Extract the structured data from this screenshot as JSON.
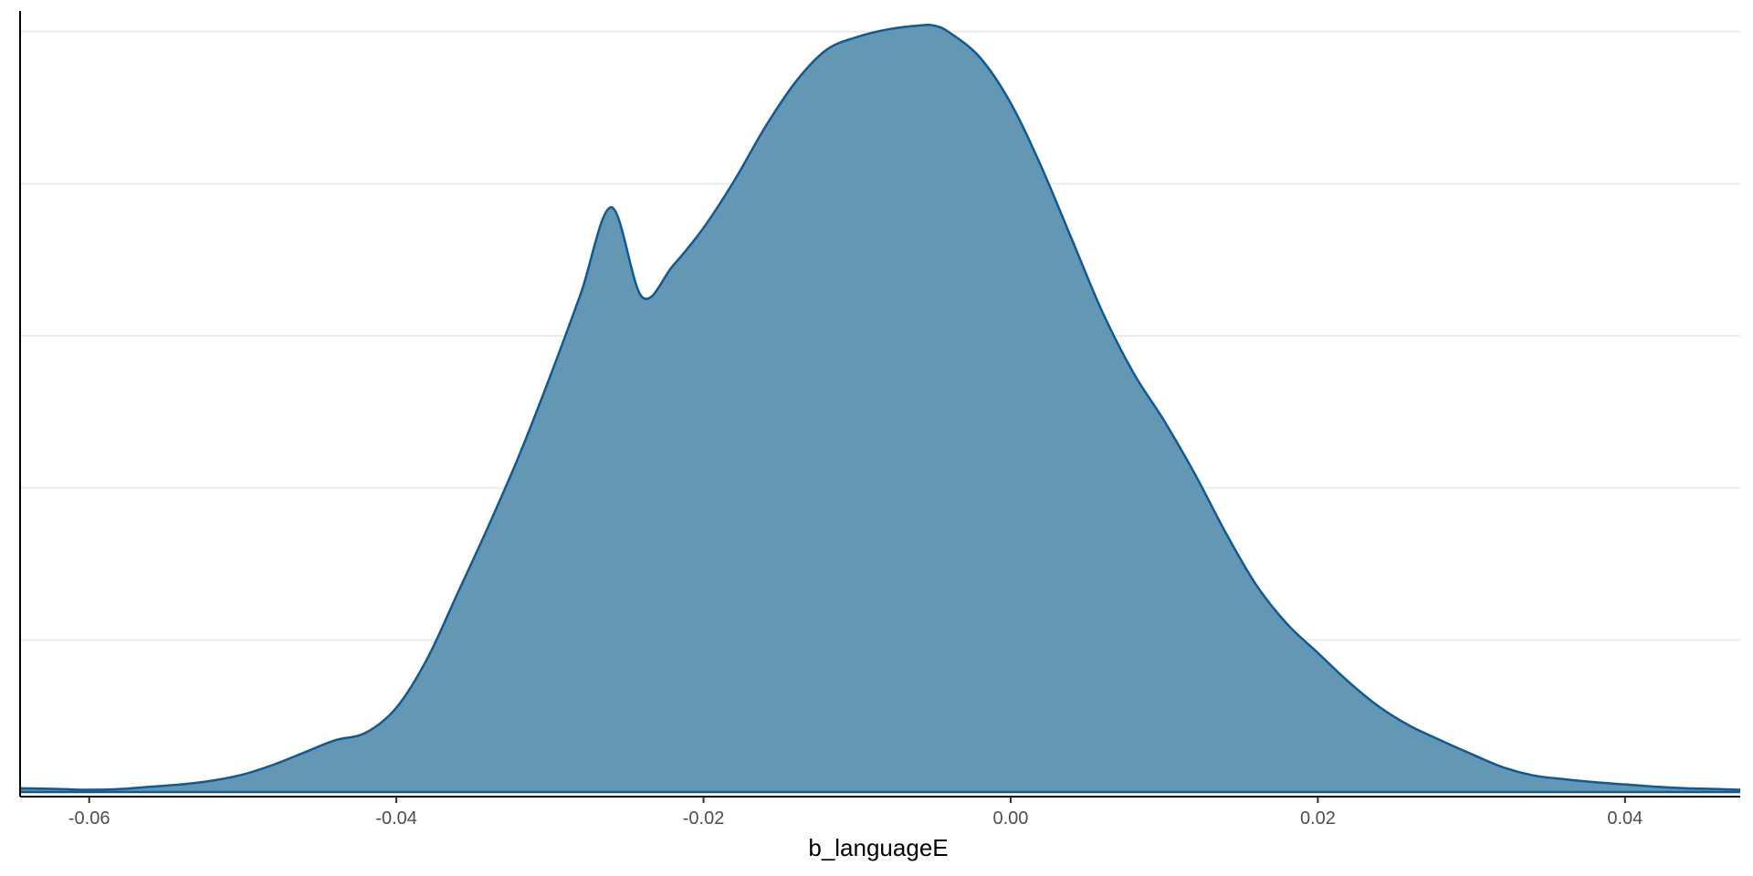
{
  "chart_data": {
    "type": "area",
    "title": "",
    "xlabel": "b_languageE",
    "ylabel": "",
    "xlim": [
      -0.0645,
      0.0475
    ],
    "ylim": [
      0,
      1.02
    ],
    "x_ticks": [
      -0.06,
      -0.04,
      -0.02,
      0.0,
      0.02,
      0.04
    ],
    "x_tick_labels": [
      "-0.06",
      "-0.04",
      "-0.02",
      "0.00",
      "0.02",
      "0.04"
    ],
    "y_gridlines": [
      0.2,
      0.4,
      0.6,
      0.8,
      1.0
    ],
    "grid": "horizontal-major",
    "legend": "none",
    "fill_color": "#6497b3",
    "line_color": "#0d5a96",
    "series": [
      {
        "x": [
          -0.0645,
          -0.062,
          -0.06,
          -0.058,
          -0.056,
          -0.054,
          -0.052,
          -0.05,
          -0.048,
          -0.046,
          -0.044,
          -0.042,
          -0.04,
          -0.038,
          -0.036,
          -0.034,
          -0.032,
          -0.03,
          -0.028,
          -0.026,
          -0.024,
          -0.022,
          -0.02,
          -0.018,
          -0.016,
          -0.014,
          -0.012,
          -0.01,
          -0.008,
          -0.006,
          -0.005,
          -0.004,
          -0.002,
          0.0,
          0.002,
          0.004,
          0.006,
          0.008,
          0.01,
          0.012,
          0.014,
          0.016,
          0.018,
          0.02,
          0.022,
          0.024,
          0.026,
          0.028,
          0.03,
          0.032,
          0.034,
          0.036,
          0.038,
          0.04,
          0.042,
          0.044,
          0.046,
          0.0475
        ],
        "values": [
          0.005,
          0.004,
          0.003,
          0.004,
          0.007,
          0.01,
          0.015,
          0.023,
          0.036,
          0.052,
          0.068,
          0.078,
          0.111,
          0.175,
          0.262,
          0.35,
          0.443,
          0.546,
          0.655,
          0.769,
          0.651,
          0.692,
          0.742,
          0.804,
          0.874,
          0.934,
          0.976,
          0.993,
          1.003,
          1.008,
          1.008,
          0.999,
          0.966,
          0.906,
          0.822,
          0.726,
          0.63,
          0.551,
          0.488,
          0.418,
          0.341,
          0.272,
          0.221,
          0.183,
          0.145,
          0.112,
          0.087,
          0.068,
          0.05,
          0.033,
          0.022,
          0.017,
          0.013,
          0.01,
          0.007,
          0.005,
          0.004,
          0.003
        ]
      }
    ]
  }
}
